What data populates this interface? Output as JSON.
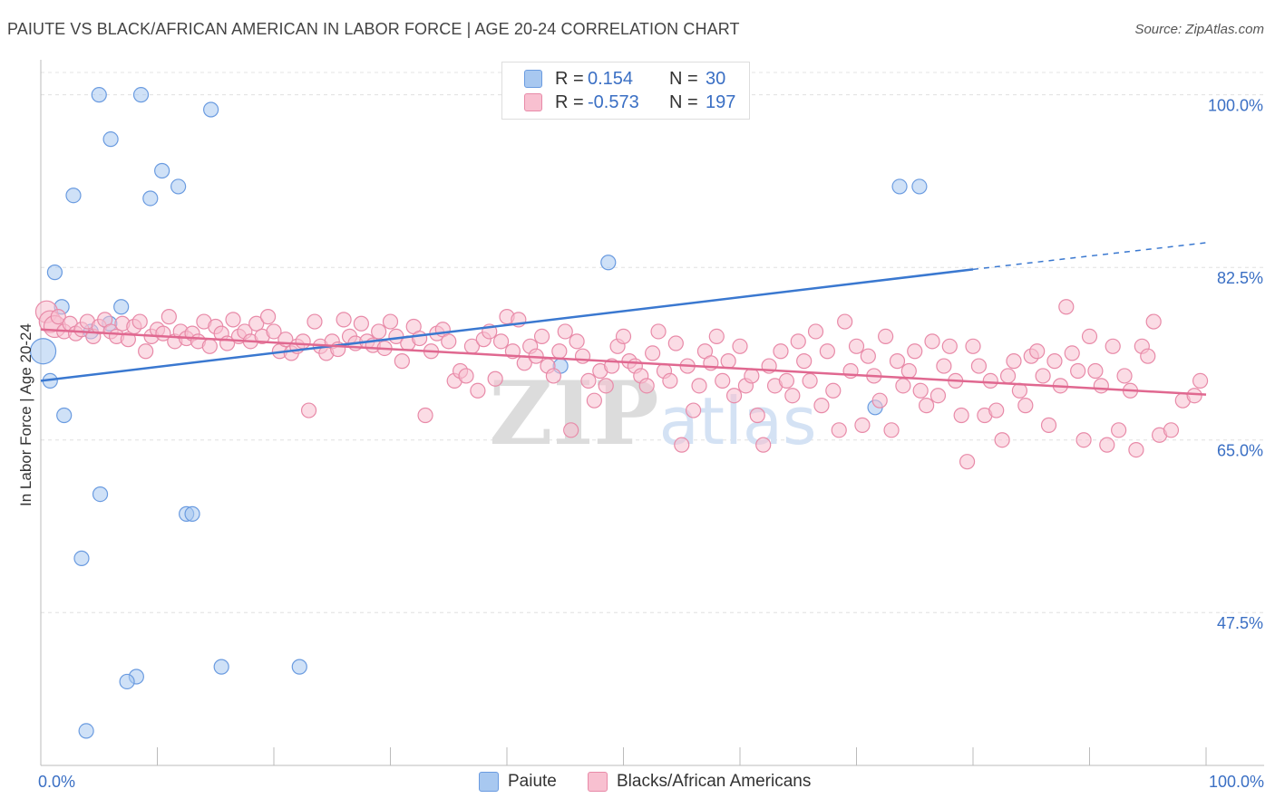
{
  "title": "PAIUTE VS BLACK/AFRICAN AMERICAN IN LABOR FORCE | AGE 20-24 CORRELATION CHART",
  "source": "Source: ZipAtlas.com",
  "watermark": "ZIPatlas",
  "legend": {
    "r_label": "R =",
    "n_label": "N =",
    "rows": [
      {
        "r": "0.154",
        "n": "30",
        "color": "#a8c8f0",
        "border": "#6a9be0"
      },
      {
        "r": "-0.573",
        "n": "197",
        "color": "#f8c0d0",
        "border": "#e88aa8"
      }
    ]
  },
  "bottom_legend": [
    {
      "label": "Paiute",
      "color": "#a8c8f0",
      "border": "#6a9be0"
    },
    {
      "label": "Blacks/African Americans",
      "color": "#f8c0d0",
      "border": "#e88aa8"
    }
  ],
  "chart_data": {
    "type": "scatter",
    "ylabel": "In Labor Force | Age 20-24",
    "xlim": [
      0,
      100
    ],
    "ylim": [
      32.0,
      103.0
    ],
    "x_tick_labels": [
      "0.0%",
      "100.0%"
    ],
    "y_ticks": [
      47.5,
      65.0,
      82.5,
      100.0
    ],
    "y_tick_labels": [
      "47.5%",
      "65.0%",
      "82.5%",
      "100.0%"
    ],
    "grid": true,
    "series": [
      {
        "name": "Paiute",
        "color": "#a8c8f0",
        "stroke": "#6a9be0",
        "trend_color": "#3a78d0",
        "trend": {
          "x0": 0,
          "y0": 71.0,
          "x1": 80,
          "y1": 82.3,
          "dash_x1": 100,
          "dash_y1": 85.0
        },
        "points": [
          [
            5.0,
            100.0
          ],
          [
            8.6,
            100.0
          ],
          [
            14.6,
            98.5
          ],
          [
            6.0,
            95.5
          ],
          [
            10.4,
            92.3
          ],
          [
            11.8,
            90.7
          ],
          [
            2.8,
            89.8
          ],
          [
            9.4,
            89.5
          ],
          [
            75.4,
            90.7
          ],
          [
            73.7,
            90.7
          ],
          [
            48.7,
            83.0
          ],
          [
            1.2,
            82.0
          ],
          [
            1.8,
            78.5
          ],
          [
            6.9,
            78.5
          ],
          [
            5.9,
            76.8
          ],
          [
            4.3,
            76.0
          ],
          [
            0.2,
            74.0
          ],
          [
            44.6,
            72.5
          ],
          [
            0.8,
            71.0
          ],
          [
            2.0,
            67.5
          ],
          [
            71.6,
            68.3
          ],
          [
            5.1,
            59.5
          ],
          [
            12.5,
            57.5
          ],
          [
            13.0,
            57.5
          ],
          [
            3.5,
            53.0
          ],
          [
            8.2,
            41.0
          ],
          [
            7.4,
            40.5
          ],
          [
            15.5,
            42.0
          ],
          [
            22.2,
            42.0
          ],
          [
            3.9,
            35.5
          ]
        ]
      },
      {
        "name": "Blacks/African Americans",
        "color": "#f8c0d0",
        "stroke": "#e88aa8",
        "trend_color": "#e06890",
        "trend": {
          "x0": 0,
          "y0": 76.2,
          "x1": 100,
          "y1": 69.6
        },
        "points": [
          [
            0.5,
            78.0
          ],
          [
            0.8,
            77.0
          ],
          [
            1.2,
            76.5
          ],
          [
            1.5,
            77.5
          ],
          [
            2.0,
            76.0
          ],
          [
            2.5,
            76.8
          ],
          [
            3.0,
            75.8
          ],
          [
            3.5,
            76.2
          ],
          [
            4.0,
            77.0
          ],
          [
            4.5,
            75.5
          ],
          [
            5.0,
            76.5
          ],
          [
            5.5,
            77.2
          ],
          [
            6.0,
            76.0
          ],
          [
            6.5,
            75.5
          ],
          [
            7.0,
            76.8
          ],
          [
            7.5,
            75.2
          ],
          [
            8.0,
            76.5
          ],
          [
            8.5,
            77.0
          ],
          [
            9.0,
            74.0
          ],
          [
            9.5,
            75.5
          ],
          [
            10.0,
            76.2
          ],
          [
            10.5,
            75.8
          ],
          [
            11.0,
            77.5
          ],
          [
            11.5,
            75.0
          ],
          [
            12.0,
            76.0
          ],
          [
            12.5,
            75.3
          ],
          [
            13.0,
            75.8
          ],
          [
            13.5,
            75.0
          ],
          [
            14.0,
            77.0
          ],
          [
            14.5,
            74.5
          ],
          [
            15.0,
            76.5
          ],
          [
            15.5,
            75.8
          ],
          [
            16.0,
            74.8
          ],
          [
            16.5,
            77.2
          ],
          [
            17.0,
            75.5
          ],
          [
            17.5,
            76.0
          ],
          [
            18.0,
            75.0
          ],
          [
            18.5,
            76.8
          ],
          [
            19.0,
            75.5
          ],
          [
            19.5,
            77.5
          ],
          [
            20.0,
            76.0
          ],
          [
            20.5,
            74.0
          ],
          [
            21.0,
            75.2
          ],
          [
            21.5,
            73.8
          ],
          [
            22.0,
            74.5
          ],
          [
            22.5,
            75.0
          ],
          [
            23.0,
            68.0
          ],
          [
            23.5,
            77.0
          ],
          [
            24.0,
            74.5
          ],
          [
            24.5,
            73.8
          ],
          [
            25.0,
            75.0
          ],
          [
            25.5,
            74.2
          ],
          [
            26.0,
            77.2
          ],
          [
            26.5,
            75.5
          ],
          [
            27.0,
            74.8
          ],
          [
            27.5,
            76.8
          ],
          [
            28.0,
            75.0
          ],
          [
            28.5,
            74.6
          ],
          [
            29.0,
            76.0
          ],
          [
            29.5,
            74.3
          ],
          [
            30.0,
            77.0
          ],
          [
            30.5,
            75.5
          ],
          [
            31.0,
            73.0
          ],
          [
            31.5,
            74.8
          ],
          [
            32.0,
            76.5
          ],
          [
            32.5,
            75.3
          ],
          [
            33.0,
            67.5
          ],
          [
            33.5,
            74.0
          ],
          [
            34.0,
            75.8
          ],
          [
            34.5,
            76.2
          ],
          [
            35.0,
            75.0
          ],
          [
            35.5,
            71.0
          ],
          [
            36.0,
            72.0
          ],
          [
            36.5,
            71.5
          ],
          [
            37.0,
            74.5
          ],
          [
            37.5,
            70.0
          ],
          [
            38.0,
            75.2
          ],
          [
            38.5,
            76.0
          ],
          [
            39.0,
            71.2
          ],
          [
            39.5,
            75.0
          ],
          [
            40.0,
            77.5
          ],
          [
            40.5,
            74.0
          ],
          [
            41.0,
            77.2
          ],
          [
            41.5,
            72.8
          ],
          [
            42.0,
            74.5
          ],
          [
            42.5,
            73.5
          ],
          [
            43.0,
            75.5
          ],
          [
            43.5,
            72.5
          ],
          [
            44.0,
            71.5
          ],
          [
            44.5,
            74.0
          ],
          [
            45.0,
            76.0
          ],
          [
            45.5,
            66.0
          ],
          [
            46.0,
            75.0
          ],
          [
            46.5,
            73.5
          ],
          [
            47.0,
            71.0
          ],
          [
            47.5,
            69.0
          ],
          [
            48.0,
            72.0
          ],
          [
            48.5,
            70.5
          ],
          [
            49.0,
            72.5
          ],
          [
            49.5,
            74.5
          ],
          [
            50.0,
            75.5
          ],
          [
            50.5,
            73.0
          ],
          [
            51.0,
            72.5
          ],
          [
            51.5,
            71.5
          ],
          [
            52.0,
            70.5
          ],
          [
            52.5,
            73.8
          ],
          [
            53.0,
            76.0
          ],
          [
            53.5,
            72.0
          ],
          [
            54.0,
            71.0
          ],
          [
            54.5,
            74.8
          ],
          [
            55.0,
            64.5
          ],
          [
            55.5,
            72.5
          ],
          [
            56.0,
            68.0
          ],
          [
            56.5,
            70.5
          ],
          [
            57.0,
            74.0
          ],
          [
            57.5,
            72.8
          ],
          [
            58.0,
            75.5
          ],
          [
            58.5,
            71.0
          ],
          [
            59.0,
            73.0
          ],
          [
            59.5,
            69.5
          ],
          [
            60.0,
            74.5
          ],
          [
            60.5,
            70.5
          ],
          [
            61.0,
            71.5
          ],
          [
            61.5,
            67.5
          ],
          [
            62.0,
            64.5
          ],
          [
            62.5,
            72.5
          ],
          [
            63.0,
            70.5
          ],
          [
            63.5,
            74.0
          ],
          [
            64.0,
            71.0
          ],
          [
            64.5,
            69.5
          ],
          [
            65.0,
            75.0
          ],
          [
            65.5,
            73.0
          ],
          [
            66.0,
            71.0
          ],
          [
            66.5,
            76.0
          ],
          [
            67.0,
            68.5
          ],
          [
            67.5,
            74.0
          ],
          [
            68.0,
            70.0
          ],
          [
            68.5,
            66.0
          ],
          [
            69.0,
            77.0
          ],
          [
            69.5,
            72.0
          ],
          [
            70.0,
            74.5
          ],
          [
            70.5,
            66.5
          ],
          [
            71.0,
            73.5
          ],
          [
            71.5,
            71.5
          ],
          [
            72.0,
            69.0
          ],
          [
            72.5,
            75.5
          ],
          [
            73.0,
            66.0
          ],
          [
            73.5,
            73.0
          ],
          [
            74.0,
            70.5
          ],
          [
            74.5,
            72.0
          ],
          [
            75.0,
            74.0
          ],
          [
            75.5,
            70.0
          ],
          [
            76.0,
            68.5
          ],
          [
            76.5,
            75.0
          ],
          [
            77.0,
            69.5
          ],
          [
            77.5,
            72.5
          ],
          [
            78.0,
            74.5
          ],
          [
            78.5,
            71.0
          ],
          [
            79.0,
            67.5
          ],
          [
            79.5,
            62.8
          ],
          [
            80.0,
            74.5
          ],
          [
            80.5,
            72.5
          ],
          [
            81.0,
            67.5
          ],
          [
            81.5,
            71.0
          ],
          [
            82.0,
            68.0
          ],
          [
            82.5,
            65.0
          ],
          [
            83.0,
            71.5
          ],
          [
            83.5,
            73.0
          ],
          [
            84.0,
            70.0
          ],
          [
            84.5,
            68.5
          ],
          [
            85.0,
            73.5
          ],
          [
            85.5,
            74.0
          ],
          [
            86.0,
            71.5
          ],
          [
            86.5,
            66.5
          ],
          [
            87.0,
            73.0
          ],
          [
            87.5,
            70.5
          ],
          [
            88.0,
            78.5
          ],
          [
            88.5,
            73.8
          ],
          [
            89.0,
            72.0
          ],
          [
            89.5,
            65.0
          ],
          [
            90.0,
            75.5
          ],
          [
            90.5,
            72.0
          ],
          [
            91.0,
            70.5
          ],
          [
            91.5,
            64.5
          ],
          [
            92.0,
            74.5
          ],
          [
            92.5,
            66.0
          ],
          [
            93.0,
            71.5
          ],
          [
            93.5,
            70.0
          ],
          [
            94.0,
            64.0
          ],
          [
            94.5,
            74.5
          ],
          [
            95.0,
            73.5
          ],
          [
            95.5,
            77.0
          ],
          [
            96.0,
            65.5
          ],
          [
            97.0,
            66.0
          ],
          [
            98.0,
            69.0
          ],
          [
            99.0,
            69.5
          ],
          [
            99.5,
            71.0
          ]
        ]
      }
    ]
  }
}
